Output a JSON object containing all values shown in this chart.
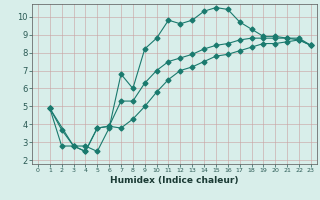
{
  "xlabel": "Humidex (Indice chaleur)",
  "ylabel": "",
  "bg_color": "#d8eeea",
  "line_color": "#1a7a6e",
  "xlim": [
    -0.5,
    23.5
  ],
  "ylim": [
    1.8,
    10.7
  ],
  "yticks": [
    2,
    3,
    4,
    5,
    6,
    7,
    8,
    9,
    10
  ],
  "xticks": [
    0,
    1,
    2,
    3,
    4,
    5,
    6,
    7,
    8,
    9,
    10,
    11,
    12,
    13,
    14,
    15,
    16,
    17,
    18,
    19,
    20,
    21,
    22,
    23
  ],
  "curve1_x": [
    1,
    2,
    3,
    4,
    5,
    6,
    7,
    8,
    9,
    10,
    11,
    12,
    13,
    14,
    15,
    16,
    17,
    18,
    19,
    20,
    21,
    22,
    23
  ],
  "curve1_y": [
    4.9,
    3.7,
    2.8,
    2.8,
    2.5,
    3.8,
    6.8,
    6.0,
    8.2,
    8.8,
    9.8,
    9.6,
    9.8,
    10.3,
    10.5,
    10.4,
    9.7,
    9.3,
    8.9,
    8.9,
    8.8,
    8.8,
    8.4
  ],
  "curve2_x": [
    1,
    2,
    3,
    4,
    5,
    6,
    7,
    8,
    9,
    10,
    11,
    12,
    13,
    14,
    15,
    16,
    17,
    18,
    19,
    20,
    21,
    22,
    23
  ],
  "curve2_y": [
    4.9,
    2.8,
    2.8,
    2.5,
    3.8,
    3.9,
    5.3,
    5.3,
    6.3,
    7.0,
    7.5,
    7.7,
    7.9,
    8.2,
    8.4,
    8.5,
    8.7,
    8.8,
    8.8,
    8.8,
    8.8,
    8.7,
    8.4
  ],
  "curve3_x": [
    1,
    3,
    4,
    5,
    6,
    7,
    8,
    9,
    10,
    11,
    12,
    13,
    14,
    15,
    16,
    17,
    18,
    19,
    20,
    21,
    22,
    23
  ],
  "curve3_y": [
    4.9,
    2.8,
    2.5,
    3.8,
    3.9,
    3.8,
    4.3,
    5.0,
    5.8,
    6.5,
    7.0,
    7.2,
    7.5,
    7.8,
    7.9,
    8.1,
    8.3,
    8.5,
    8.5,
    8.6,
    8.7,
    8.4
  ],
  "tick_labelsize": 5.5,
  "xlabel_fontsize": 6.5,
  "marker_size": 2.5,
  "linewidth": 0.8
}
